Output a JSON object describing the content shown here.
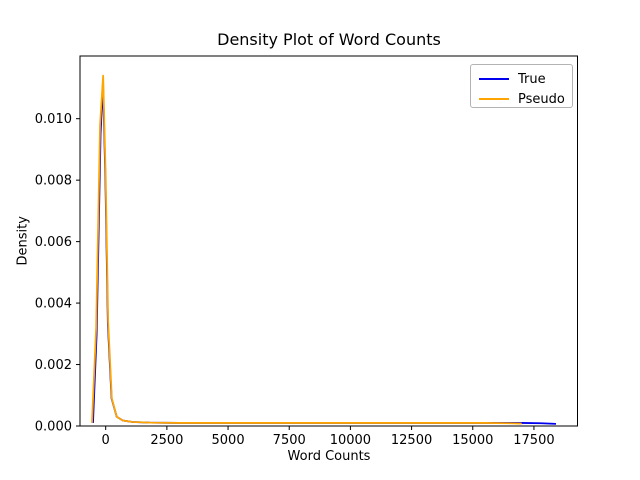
{
  "figure": {
    "background": "#ffffff"
  },
  "chart_data": {
    "type": "line",
    "title": "Density Plot of Word Counts",
    "xlabel": "Word Counts",
    "ylabel": "Density",
    "xlim": [
      -1050,
      19280
    ],
    "ylim": [
      0,
      0.01204
    ],
    "x_ticks": [
      0,
      2500,
      5000,
      7500,
      10000,
      12500,
      15000,
      17500
    ],
    "x_tick_labels": [
      "0",
      "2500",
      "5000",
      "7500",
      "10000",
      "12500",
      "15000",
      "17500"
    ],
    "y_ticks": [
      0.0,
      0.002,
      0.004,
      0.006,
      0.008,
      0.01
    ],
    "y_tick_labels": [
      "0.000",
      "0.002",
      "0.004",
      "0.006",
      "0.008",
      "0.010"
    ],
    "grid": false,
    "legend": {
      "position": "upper right",
      "entries": [
        {
          "label": "True",
          "color": "#0000ee"
        },
        {
          "label": "Pseudo",
          "color": "#ffa500"
        }
      ]
    },
    "series": [
      {
        "name": "True",
        "color": "#0000ee",
        "peak_density": 0.0112,
        "x": [
          -520,
          -370,
          -210,
          -110,
          -10,
          90,
          240,
          450,
          700,
          1100,
          1800,
          3000,
          5000,
          8000,
          11000,
          14000,
          16000,
          17000,
          17800,
          18400
        ],
        "y": [
          0.0001,
          0.003,
          0.0095,
          0.0112,
          0.008,
          0.0033,
          0.0009,
          0.0003,
          0.00018,
          0.00013,
          0.00011,
          0.0001,
          0.0001,
          0.0001,
          0.0001,
          0.0001,
          0.0001,
          0.0001,
          9e-05,
          7e-05
        ]
      },
      {
        "name": "Pseudo",
        "color": "#ffa500",
        "peak_density": 0.0114,
        "x": [
          -560,
          -390,
          -230,
          -105,
          0,
          100,
          250,
          450,
          700,
          1100,
          1800,
          3000,
          5000,
          8000,
          11000,
          14000,
          15500,
          16500,
          17000
        ],
        "y": [
          0.0001,
          0.0032,
          0.0098,
          0.0114,
          0.0081,
          0.0034,
          0.0009,
          0.0003,
          0.00018,
          0.00013,
          0.00011,
          0.0001,
          0.0001,
          0.0001,
          0.0001,
          0.0001,
          0.0001,
          9e-05,
          8e-05
        ]
      }
    ]
  }
}
